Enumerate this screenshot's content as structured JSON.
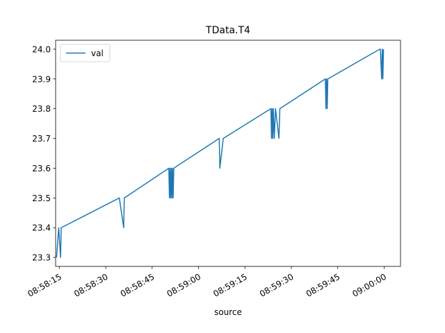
{
  "chart_data": {
    "type": "line",
    "title": "TData.T4",
    "xlabel": "source",
    "ylabel": "",
    "legend": {
      "placement": "top-left",
      "entries": [
        "val"
      ]
    },
    "grid": false,
    "x_axis": {
      "type": "time",
      "tick_labels": [
        "08:58:15",
        "08:58:30",
        "08:58:45",
        "08:59:00",
        "08:59:15",
        "08:59:30",
        "08:59:45",
        "09:00:00"
      ],
      "range": [
        "08:58:13.8",
        "09:00:05.3"
      ]
    },
    "y_axis": {
      "tick_labels": [
        "23.3",
        "23.4",
        "23.5",
        "23.6",
        "23.7",
        "23.8",
        "23.9",
        "24.0"
      ],
      "ylim": [
        23.27,
        24.03
      ]
    },
    "series": [
      {
        "name": "val",
        "color": "#1f77b4",
        "points": [
          [
            "08:58:14.1",
            23.3
          ],
          [
            "08:58:14.8",
            23.4
          ],
          [
            "08:58:15.4",
            23.3
          ],
          [
            "08:58:15.6",
            23.4
          ],
          [
            "08:58:34.4",
            23.5
          ],
          [
            "08:58:35.8",
            23.4
          ],
          [
            "08:58:36.0",
            23.5
          ],
          [
            "08:58:50.4",
            23.6
          ],
          [
            "08:58:50.6",
            23.5
          ],
          [
            "08:58:50.8",
            23.6
          ],
          [
            "08:58:51.0",
            23.5
          ],
          [
            "08:58:51.2",
            23.6
          ],
          [
            "08:58:51.4",
            23.5
          ],
          [
            "08:58:51.6",
            23.6
          ],
          [
            "08:58:51.8",
            23.5
          ],
          [
            "08:58:52.0",
            23.6
          ],
          [
            "08:59:06.7",
            23.7
          ],
          [
            "08:59:06.9",
            23.6
          ],
          [
            "08:59:08.0",
            23.7
          ],
          [
            "08:59:23.4",
            23.8
          ],
          [
            "08:59:23.6",
            23.7
          ],
          [
            "08:59:23.8",
            23.8
          ],
          [
            "08:59:24.0",
            23.7
          ],
          [
            "08:59:24.2",
            23.8
          ],
          [
            "08:59:24.5",
            23.7
          ],
          [
            "08:59:24.9",
            23.8
          ],
          [
            "08:59:26.0",
            23.7
          ],
          [
            "08:59:26.3",
            23.8
          ],
          [
            "08:59:41.0",
            23.9
          ],
          [
            "08:59:41.2",
            23.8
          ],
          [
            "08:59:41.4",
            23.9
          ],
          [
            "08:59:41.6",
            23.8
          ],
          [
            "08:59:41.8",
            23.9
          ],
          [
            "08:59:58.6",
            24.0
          ],
          [
            "08:59:58.8",
            24.0
          ],
          [
            "08:59:59.2",
            23.9
          ],
          [
            "08:59:59.4",
            24.0
          ],
          [
            "08:59:59.6",
            23.9
          ],
          [
            "08:59:59.8",
            24.0
          ]
        ]
      }
    ]
  }
}
